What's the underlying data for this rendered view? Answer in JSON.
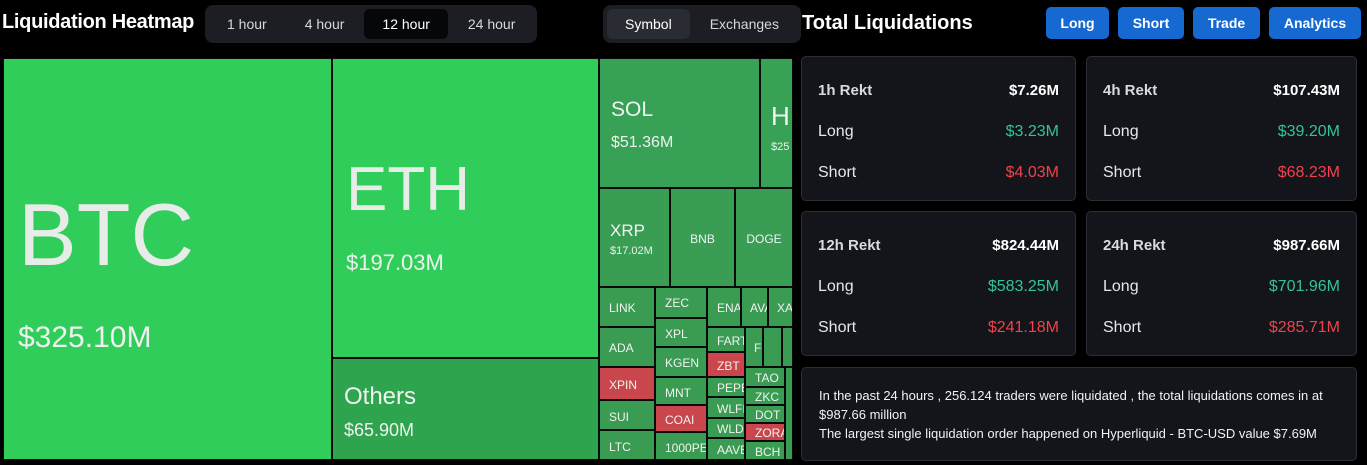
{
  "header": {
    "title": "Liquidation Heatmap",
    "time_tabs": [
      "1 hour",
      "4 hour",
      "12 hour",
      "24 hour"
    ],
    "active_time_tab": 2,
    "view_tabs": [
      "Symbol",
      "Exchanges"
    ],
    "active_view_tab": 0
  },
  "heatmap": {
    "tiles": [
      {
        "symbol": "BTC",
        "value": "$325.10M",
        "color": "#30cd5b"
      },
      {
        "symbol": "ETH",
        "value": "$197.03M",
        "color": "#30cd5b"
      },
      {
        "symbol": "Others",
        "value": "$65.90M",
        "color": "#2fa44f"
      },
      {
        "symbol": "SOL",
        "value": "$51.36M",
        "color": "#37a256"
      },
      {
        "symbol": "H",
        "value": "$25",
        "color": "#37a256"
      },
      {
        "symbol": "XRP",
        "value": "$17.02M",
        "color": "#399d54"
      },
      {
        "symbol": "BNB",
        "color": "#399d54"
      },
      {
        "symbol": "DOGE",
        "color": "#399d54"
      },
      {
        "symbol": "LINK",
        "color": "#3a9b53"
      },
      {
        "symbol": "ADA",
        "color": "#3a9b53"
      },
      {
        "symbol": "XPIN",
        "color": "#c8464c"
      },
      {
        "symbol": "SUI",
        "color": "#3a9b53"
      },
      {
        "symbol": "LTC",
        "color": "#3a9b53"
      },
      {
        "symbol": "ZEC",
        "color": "#3a9b53"
      },
      {
        "symbol": "XPL",
        "color": "#3a9b53"
      },
      {
        "symbol": "KGEN",
        "color": "#3a9b53"
      },
      {
        "symbol": "MNT",
        "color": "#3a9b53"
      },
      {
        "symbol": "COAI",
        "color": "#c8464c"
      },
      {
        "symbol": "1000PE",
        "color": "#3a9b53"
      },
      {
        "symbol": "ENA",
        "color": "#3a9b53"
      },
      {
        "symbol": "AVA",
        "color": "#3a9b53"
      },
      {
        "symbol": "XA",
        "color": "#3a9b53"
      },
      {
        "symbol": "FART",
        "color": "#3a9b53"
      },
      {
        "symbol": "ZBT",
        "color": "#c8464c"
      },
      {
        "symbol": "PEPE",
        "color": "#3a9b53"
      },
      {
        "symbol": "WLFI",
        "color": "#3a9b53"
      },
      {
        "symbol": "WLD",
        "color": "#3a9b53"
      },
      {
        "symbol": "AAVE",
        "color": "#3a9b53"
      },
      {
        "symbol": "F",
        "color": "#3a9b53"
      },
      {
        "symbol": "TAO",
        "color": "#3a9b53"
      },
      {
        "symbol": "ZKC",
        "color": "#3a9b53"
      },
      {
        "symbol": "DOT",
        "color": "#3a9b53"
      },
      {
        "symbol": "ZORA",
        "color": "#c8464c"
      },
      {
        "symbol": "BCH",
        "color": "#3a9b53"
      }
    ]
  },
  "panel": {
    "title": "Total Liquidations",
    "buttons": [
      "Long",
      "Short",
      "Trade",
      "Analytics"
    ],
    "cards": [
      {
        "label": "1h Rekt",
        "total": "$7.26M",
        "long_label": "Long",
        "long": "$3.23M",
        "short_label": "Short",
        "short": "$4.03M"
      },
      {
        "label": "4h Rekt",
        "total": "$107.43M",
        "long_label": "Long",
        "long": "$39.20M",
        "short_label": "Short",
        "short": "$68.23M"
      },
      {
        "label": "12h Rekt",
        "total": "$824.44M",
        "long_label": "Long",
        "long": "$583.25M",
        "short_label": "Short",
        "short": "$241.18M"
      },
      {
        "label": "24h Rekt",
        "total": "$987.66M",
        "long_label": "Long",
        "long": "$701.96M",
        "short_label": "Short",
        "short": "$285.71M"
      }
    ],
    "summary": [
      "In the past 24 hours , 256.124 traders were liquidated , the total liquidations comes in at $987.66 million",
      "The largest single liquidation order happened on Hyperliquid - BTC-USD value $7.69M"
    ]
  }
}
